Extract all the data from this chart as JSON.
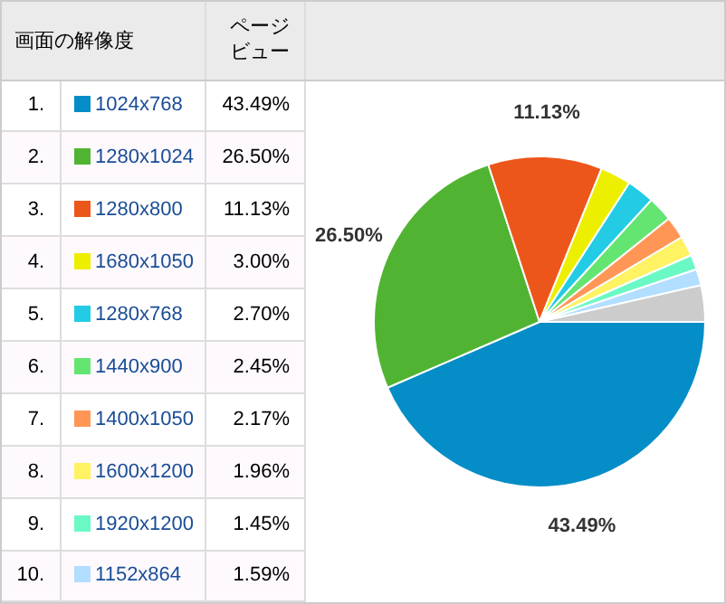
{
  "chart_data": {
    "type": "pie",
    "xlabel": "画面の解像度",
    "ylabel": "ページビュー",
    "categories": [
      "1024x768",
      "1280x1024",
      "1280x800",
      "1680x1050",
      "1280x768",
      "1440x900",
      "1400x1050",
      "1600x1200",
      "1920x1200",
      "1152x864",
      null
    ],
    "values": [
      43.49,
      26.5,
      11.13,
      3.0,
      2.7,
      2.45,
      2.17,
      1.96,
      1.45,
      1.59,
      3.56
    ],
    "colors": [
      "#058dc7",
      "#50b432",
      "#ed561b",
      "#edef00",
      "#24cbe5",
      "#64e572",
      "#ff9655",
      "#fff263",
      "#6af9c4",
      "#b2deff",
      "#cccccc"
    ],
    "value_labels": [
      "43.49%",
      "26.50%",
      "11.13%",
      "3.00%",
      "2.70%",
      "2.45%",
      "2.17%",
      "1.96%",
      "1.45%",
      "1.59%",
      null
    ],
    "annotations": [
      "1.",
      "2.",
      "3.",
      "4.",
      "5.",
      "6.",
      "7.",
      "8.",
      "9.",
      "10."
    ],
    "legend": "left"
  }
}
